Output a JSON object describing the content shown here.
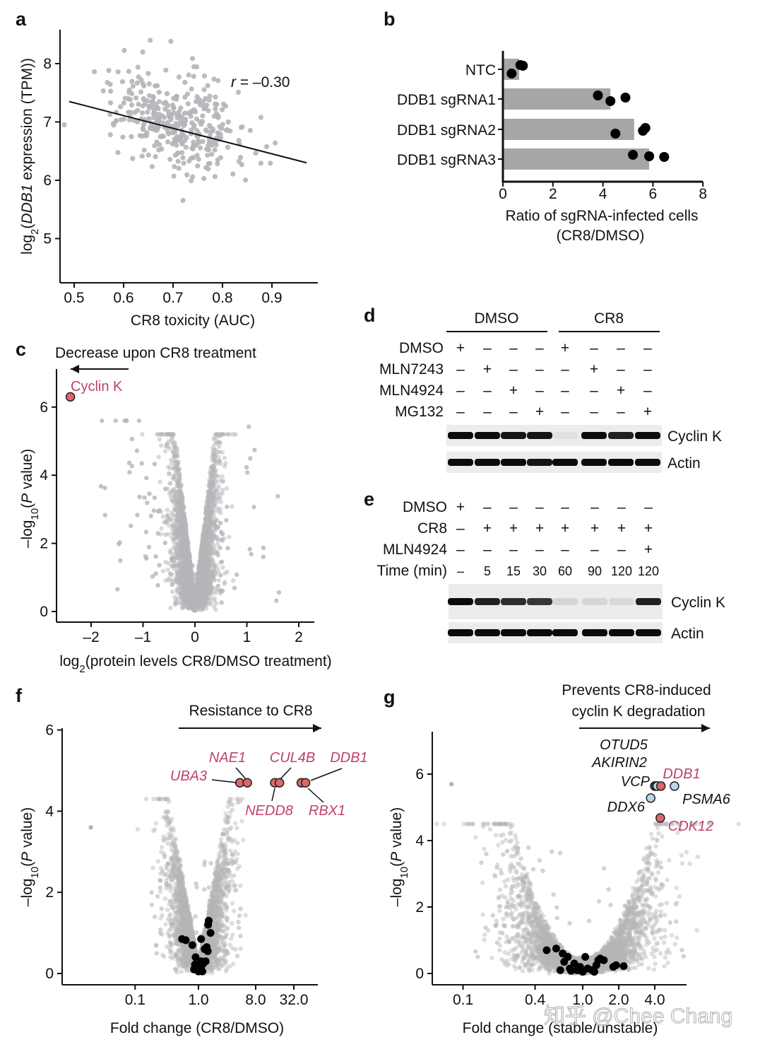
{
  "panel_letters": [
    "a",
    "b",
    "c",
    "d",
    "e",
    "f",
    "g"
  ],
  "watermark": "知乎 @Chee Chang",
  "colors": {
    "cloud": "#b5b5b9",
    "bar": "#a6a6a6",
    "hit_red": "#e06666",
    "hit_blue": "#b7d7e8",
    "label_red": "#c0406e",
    "point_black": "#000000"
  },
  "chart_data": [
    {
      "panel": "a",
      "type": "scatter",
      "xlabel": "CR8 toxicity (AUC)",
      "ylabel_parts": [
        "log",
        "2",
        "(",
        "DDB1",
        " expression (TPM))"
      ],
      "xticks": [
        "0.5",
        "0.6",
        "0.7",
        "0.8",
        "0.9"
      ],
      "xtick_values": [
        0.5,
        0.6,
        0.7,
        0.8,
        0.9
      ],
      "yticks": [
        "5",
        "6",
        "7",
        "8"
      ],
      "ytick_values": [
        5,
        6,
        7,
        8
      ],
      "xlim": [
        0.47,
        0.98
      ],
      "ylim": [
        4.3,
        8.6
      ],
      "annotation_parts": [
        "r",
        " = –0.30"
      ],
      "regression": {
        "x": [
          0.49,
          0.97
        ],
        "y": [
          7.35,
          6.3
        ]
      },
      "grid": false
    },
    {
      "panel": "b",
      "type": "bar",
      "orientation": "horizontal",
      "categories": [
        "NTC",
        "DDB1 sgRNA1",
        "DDB1 sgRNA2",
        "DDB1 sgRNA3"
      ],
      "values": [
        0.65,
        4.3,
        5.25,
        5.85
      ],
      "replicates": [
        [
          0.35,
          0.7,
          0.8
        ],
        [
          3.8,
          4.3,
          4.9
        ],
        [
          4.5,
          5.6,
          5.7
        ],
        [
          5.2,
          5.85,
          6.45
        ]
      ],
      "xticks": [
        "0",
        "2",
        "4",
        "6",
        "8"
      ],
      "xtick_values": [
        0,
        2,
        4,
        6,
        8
      ],
      "xlim": [
        0,
        8
      ],
      "xlabel_lines": [
        "Ratio of sgRNA-infected cells",
        "(CR8/DMSO)"
      ],
      "grid": false
    },
    {
      "panel": "c",
      "type": "scatter",
      "subtype": "volcano",
      "title": "Decrease upon CR8 treatment",
      "xlabel_parts": [
        "log",
        "2",
        "(protein levels CR8/DMSO treatment)"
      ],
      "ylabel_parts": [
        "–log",
        "10",
        "(",
        "P",
        " value)"
      ],
      "xticks": [
        "–2",
        "–1",
        "0",
        "1",
        "2"
      ],
      "xtick_values": [
        -2,
        -1,
        0,
        1,
        2
      ],
      "yticks": [
        "0",
        "2",
        "4",
        "6"
      ],
      "ytick_values": [
        0,
        2,
        4,
        6
      ],
      "xlim": [
        -2.7,
        2.3
      ],
      "ylim": [
        -0.3,
        7.1
      ],
      "highlighted": [
        {
          "label": "Cyclin K",
          "x": -2.4,
          "y": 6.3
        }
      ],
      "grid": false
    },
    {
      "panel": "d",
      "type": "table",
      "subtype": "western-blot",
      "groups": [
        "DMSO",
        "CR8"
      ],
      "conditions": [
        {
          "label": "DMSO",
          "values": [
            "+",
            "–",
            "–",
            "–",
            "+",
            "–",
            "–",
            "–"
          ]
        },
        {
          "label": "MLN7243",
          "values": [
            "–",
            "+",
            "–",
            "–",
            "–",
            "+",
            "–",
            "–"
          ]
        },
        {
          "label": "MLN4924",
          "values": [
            "–",
            "–",
            "+",
            "–",
            "–",
            "–",
            "+",
            "–"
          ]
        },
        {
          "label": "MG132",
          "values": [
            "–",
            "–",
            "–",
            "+",
            "–",
            "–",
            "–",
            "+"
          ]
        }
      ],
      "blots": [
        {
          "label": "Cyclin K",
          "intensity": [
            1,
            1,
            0.95,
            0.95,
            0.05,
            1,
            0.9,
            1
          ]
        },
        {
          "label": "Actin",
          "intensity": [
            1,
            1,
            1,
            0.95,
            1,
            1,
            1,
            1
          ]
        }
      ]
    },
    {
      "panel": "e",
      "type": "table",
      "subtype": "western-blot",
      "conditions": [
        {
          "label": "DMSO",
          "values": [
            "+",
            "–",
            "–",
            "–",
            "–",
            "–",
            "–",
            "–"
          ]
        },
        {
          "label": "CR8",
          "values": [
            "–",
            "+",
            "+",
            "+",
            "+",
            "+",
            "+",
            "+"
          ]
        },
        {
          "label": "MLN4924",
          "values": [
            "–",
            "–",
            "–",
            "–",
            "–",
            "–",
            "–",
            "+"
          ]
        },
        {
          "label": "Time (min)",
          "values": [
            "–",
            "5",
            "15",
            "30",
            "60",
            "90",
            "120",
            "120"
          ]
        }
      ],
      "blots": [
        {
          "label": "Cyclin K",
          "intensity": [
            1,
            0.9,
            0.85,
            0.8,
            0.1,
            0.1,
            0.08,
            0.9
          ]
        },
        {
          "label": "Actin",
          "intensity": [
            1,
            1,
            1,
            1,
            1,
            1,
            1,
            1
          ]
        }
      ]
    },
    {
      "panel": "f",
      "type": "scatter",
      "subtype": "volcano",
      "x_scale": "log2",
      "title": "Resistance to CR8",
      "xlabel": "Fold change (CR8/DMSO)",
      "ylabel_parts": [
        "–log",
        "10",
        "(",
        "P",
        " value)"
      ],
      "xticks": [
        "0.1",
        "1.0",
        "8.0",
        "32.0"
      ],
      "xtick_values": [
        0.1,
        1.0,
        8.0,
        32.0
      ],
      "yticks": [
        "0",
        "2",
        "4",
        "6"
      ],
      "ytick_values": [
        0,
        2,
        4,
        6
      ],
      "xlim": [
        0.01,
        80
      ],
      "ylim": [
        -0.3,
        6.1
      ],
      "highlighted": [
        {
          "label": "UBA3",
          "x": 4.5,
          "y": 4.7
        },
        {
          "label": "NAE1",
          "x": 5.9,
          "y": 4.7
        },
        {
          "label": "NEDD8",
          "x": 16,
          "y": 4.7
        },
        {
          "label": "CUL4B",
          "x": 19,
          "y": 4.7
        },
        {
          "label": "RBX1",
          "x": 42,
          "y": 4.7
        },
        {
          "label": "DDB1",
          "x": 49,
          "y": 4.7
        }
      ],
      "black_points": [
        [
          0.55,
          0.85
        ],
        [
          0.63,
          0.82
        ],
        [
          0.8,
          0.7
        ],
        [
          0.9,
          0.4
        ],
        [
          0.88,
          0.22
        ],
        [
          0.92,
          0.15
        ],
        [
          0.95,
          0.1
        ],
        [
          1.0,
          0.05
        ],
        [
          1.05,
          0.2
        ],
        [
          1.1,
          0.3
        ],
        [
          1.1,
          0.15
        ],
        [
          1.15,
          0.05
        ],
        [
          1.2,
          0.25
        ],
        [
          1.1,
          0.85
        ],
        [
          1.25,
          0.6
        ],
        [
          1.35,
          0.65
        ],
        [
          1.4,
          0.55
        ],
        [
          1.45,
          1.3
        ],
        [
          1.42,
          1.2
        ],
        [
          1.55,
          1.0
        ],
        [
          1.3,
          0.3
        ],
        [
          0.85,
          0.1
        ]
      ],
      "grid": false
    },
    {
      "panel": "g",
      "type": "scatter",
      "subtype": "volcano",
      "x_scale": "log2",
      "title_lines": [
        "Prevents CR8-induced",
        "cyclin K degradation"
      ],
      "xlabel": "Fold change (stable/unstable)",
      "ylabel_parts": [
        "–log",
        "10",
        "(",
        "P",
        " value)"
      ],
      "xticks": [
        "0.1",
        "0.4",
        "1.0",
        "2.0",
        "4.0"
      ],
      "xtick_values": [
        0.1,
        0.4,
        1.0,
        2.0,
        4.0
      ],
      "yticks": [
        "0",
        "2",
        "4",
        "6"
      ],
      "ytick_values": [
        0,
        2,
        4,
        6
      ],
      "xlim": [
        0.06,
        8.5
      ],
      "ylim": [
        -0.3,
        7.3
      ],
      "highlighted": [
        {
          "label": "OTUD5",
          "x": 4.0,
          "y": 5.64,
          "color": "blue"
        },
        {
          "label": "AKIRIN2",
          "x": 4.1,
          "y": 5.64,
          "color": "blue"
        },
        {
          "label": "VCP",
          "x": 4.2,
          "y": 5.64,
          "color": "blue"
        },
        {
          "label": "DDB1",
          "x": 4.5,
          "y": 5.64,
          "color": "red"
        },
        {
          "label": "PSMA6",
          "x": 5.85,
          "y": 5.64,
          "color": "blue"
        },
        {
          "label": "DDX6",
          "x": 3.7,
          "y": 5.28,
          "color": "blue"
        },
        {
          "label": "CDK12",
          "x": 4.45,
          "y": 4.68,
          "color": "red"
        }
      ],
      "black_points": [
        [
          0.5,
          0.7
        ],
        [
          0.6,
          0.75
        ],
        [
          0.68,
          0.6
        ],
        [
          0.7,
          0.35
        ],
        [
          0.75,
          0.5
        ],
        [
          0.78,
          0.15
        ],
        [
          0.85,
          0.3
        ],
        [
          0.8,
          0.08
        ],
        [
          0.9,
          0.1
        ],
        [
          0.95,
          0.2
        ],
        [
          1.0,
          0.05
        ],
        [
          1.05,
          0.5
        ],
        [
          1.1,
          0.15
        ],
        [
          1.2,
          0.1
        ],
        [
          1.3,
          0.25
        ],
        [
          1.35,
          0.4
        ],
        [
          1.4,
          0.45
        ],
        [
          1.5,
          0.4
        ],
        [
          1.25,
          0.05
        ],
        [
          1.8,
          0.2
        ],
        [
          1.9,
          0.25
        ],
        [
          2.2,
          0.22
        ],
        [
          0.65,
          0.1
        ]
      ],
      "grid": false
    }
  ]
}
